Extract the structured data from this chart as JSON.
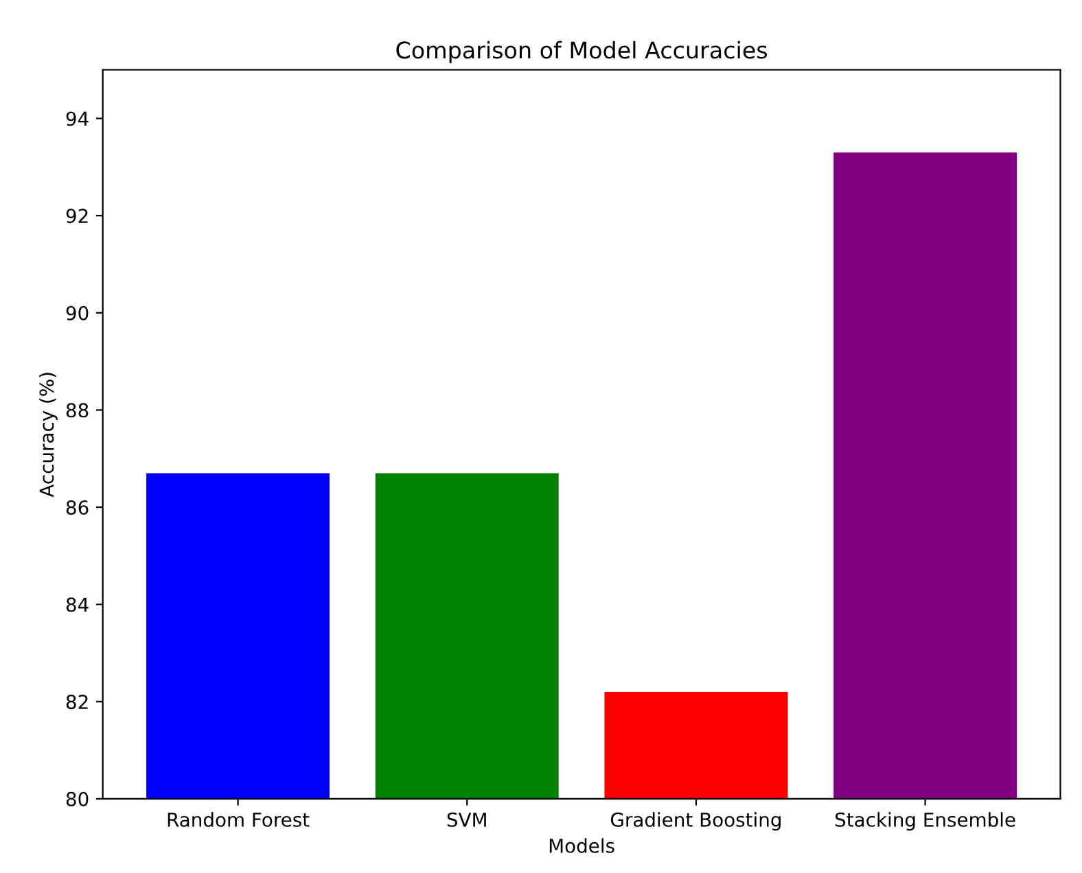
{
  "chart_data": {
    "type": "bar",
    "title": "Comparison of Model Accuracies",
    "xlabel": "Models",
    "ylabel": "Accuracy (%)",
    "categories": [
      "Random Forest",
      "SVM",
      "Gradient Boosting",
      "Stacking Ensemble"
    ],
    "values": [
      86.7,
      86.7,
      82.2,
      93.3
    ],
    "colors": [
      "#0000ff",
      "#008000",
      "#ff0000",
      "#800080"
    ],
    "ylim": [
      80,
      95
    ],
    "yticks": [
      80,
      82,
      84,
      86,
      88,
      90,
      92,
      94
    ]
  }
}
